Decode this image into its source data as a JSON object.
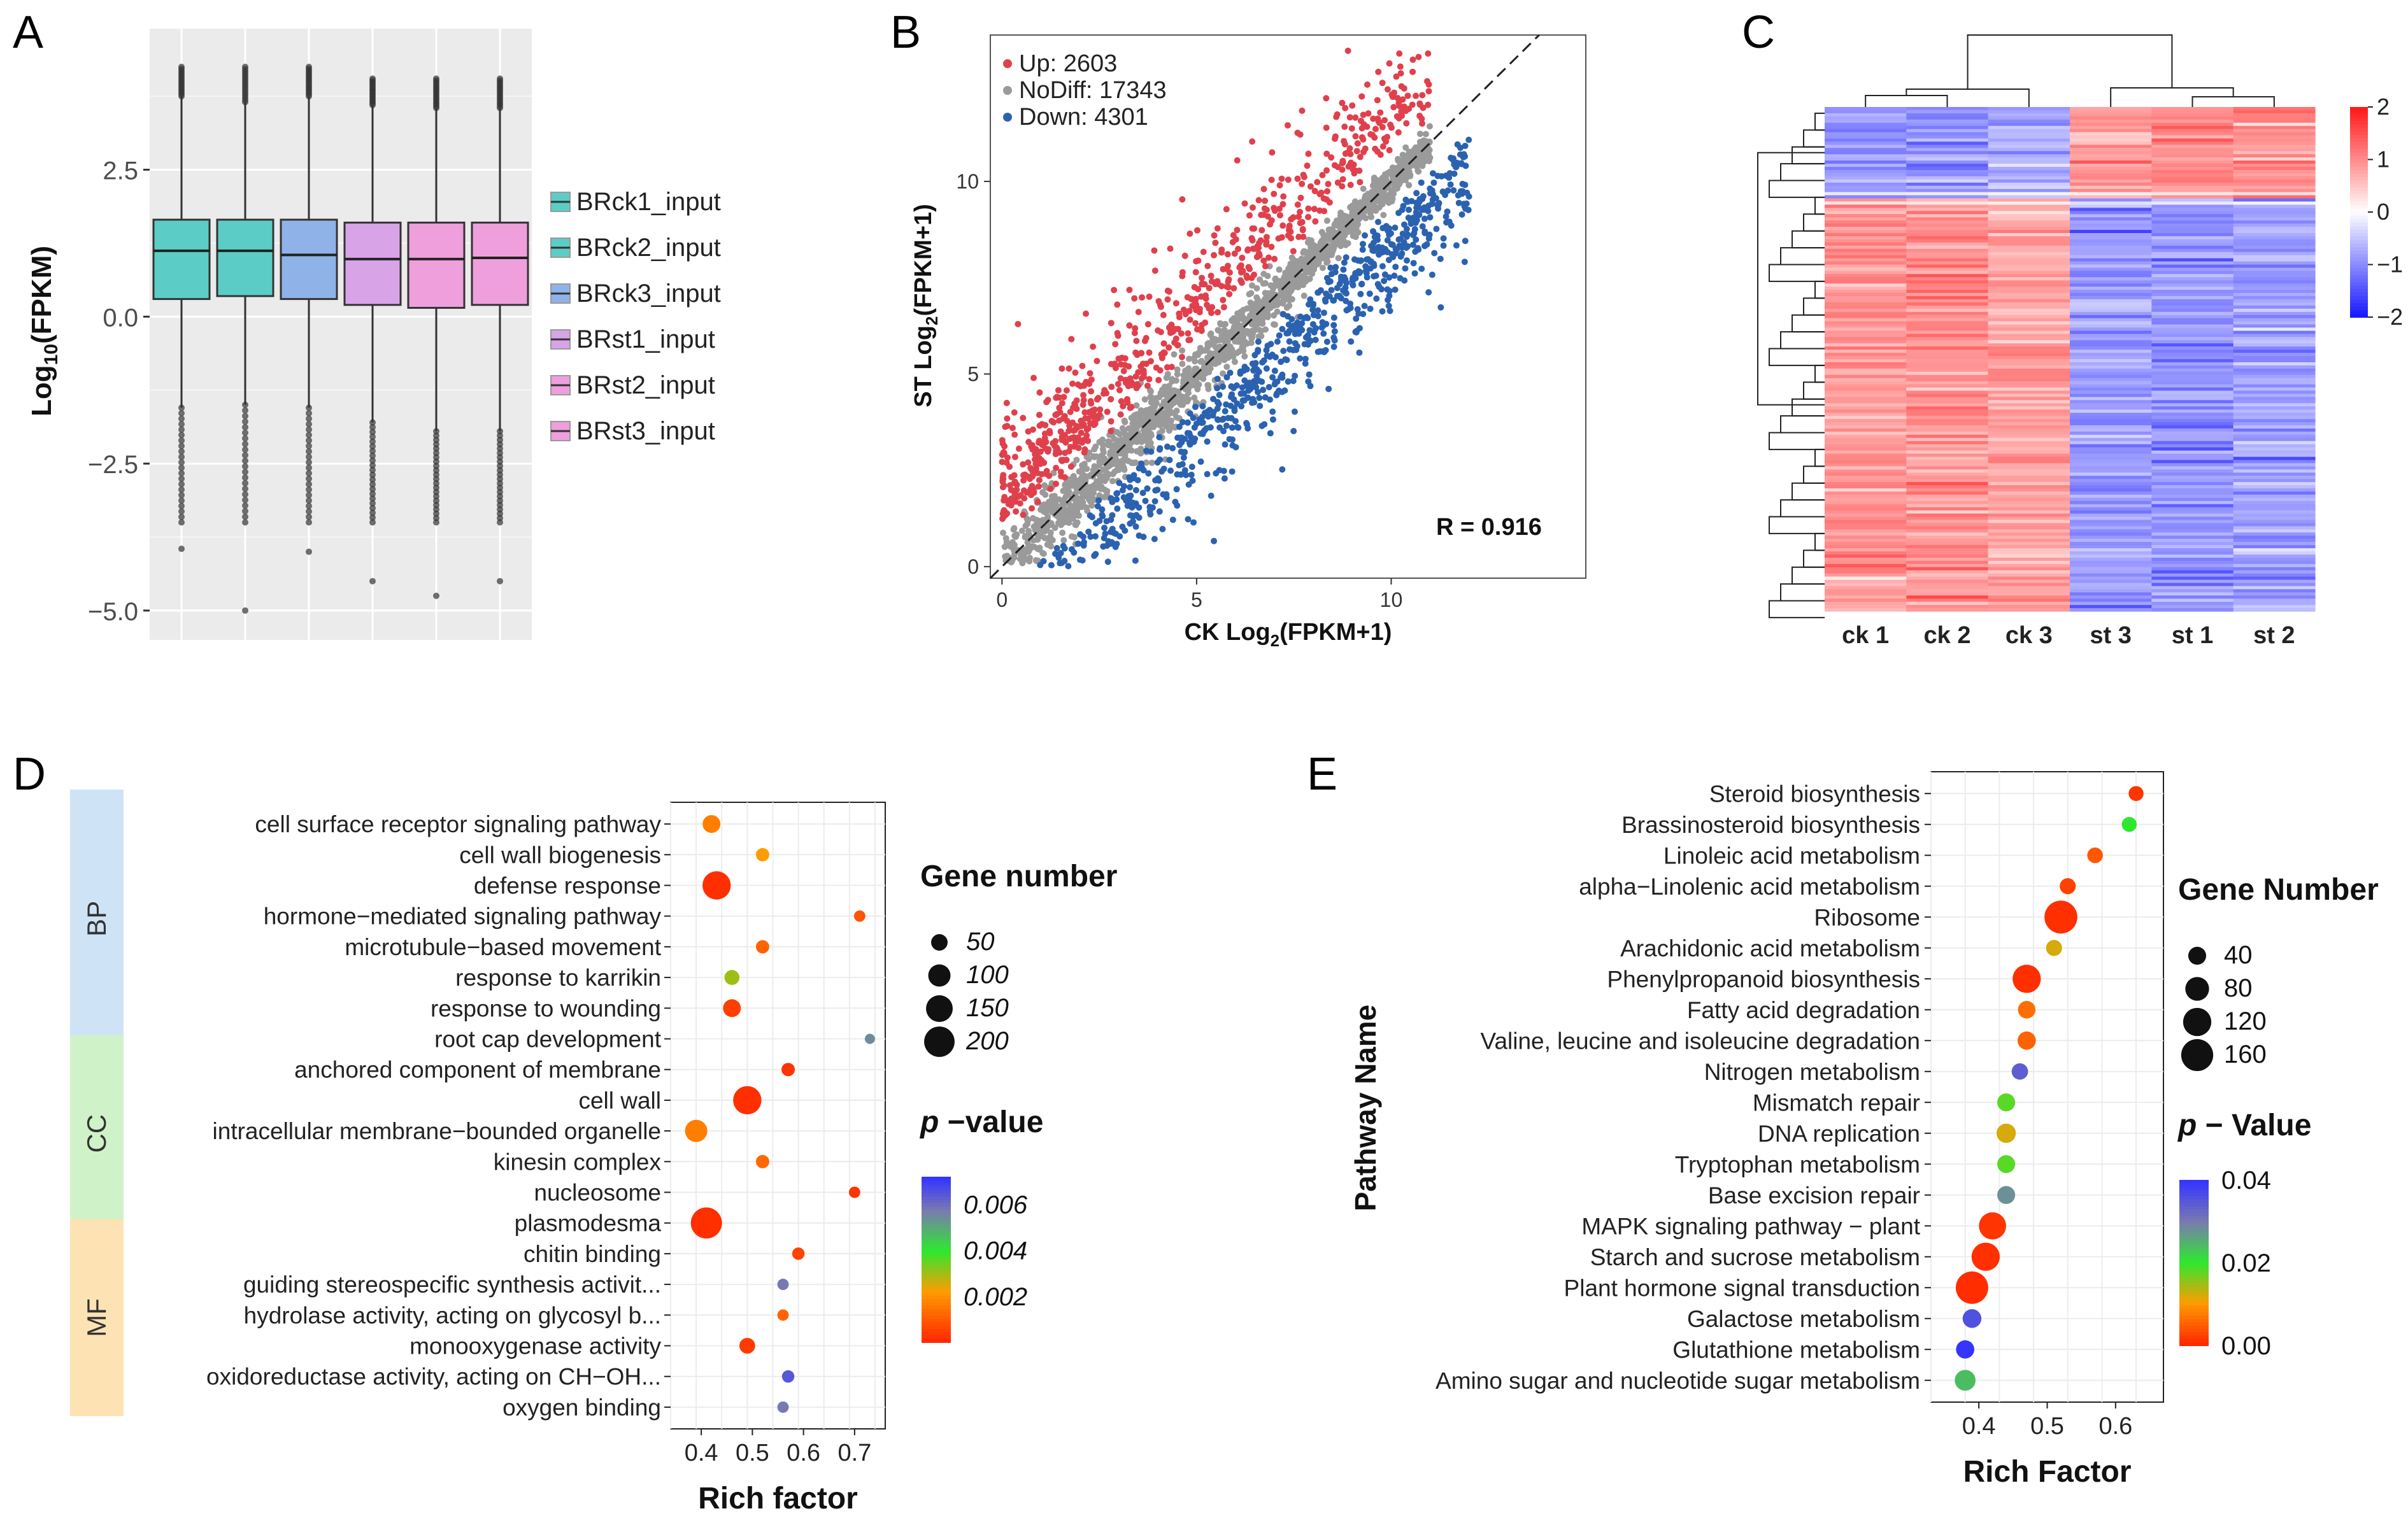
{
  "colors": {
    "red": "#e8383d",
    "gray": "#9a9a9a",
    "blue": "#2060b0",
    "teal": "#5fcdc7",
    "pink": "#e9a0df",
    "hm_high": "#ff0000",
    "hm_low": "#0000ff"
  },
  "panels": {
    "a": "A",
    "b": "B",
    "c": "C",
    "d": "D",
    "e": "E"
  },
  "chart_data": [
    {
      "id": "A",
      "type": "box",
      "ylabel_main": "Log",
      "ylabel_sub": "10",
      "ylabel_tail": "(FPKM)",
      "ylim": [
        -5.5,
        4.9
      ],
      "yticks": [
        2.5,
        0,
        -2.5,
        -5
      ],
      "ytick_labels": [
        "2.5",
        "0.0",
        "−2.5",
        "−5.0"
      ],
      "series": [
        {
          "name": "BRck1_input",
          "q1": 0.3,
          "median": 1.12,
          "q3": 1.65,
          "whisker_low": -1.55,
          "whisker_high": 3.75,
          "max": 4.25,
          "min": -3.95,
          "color": "teal"
        },
        {
          "name": "BRck2_input",
          "q1": 0.35,
          "median": 1.12,
          "q3": 1.65,
          "whisker_low": -1.5,
          "whisker_high": 3.65,
          "max": 4.25,
          "min": -5.0,
          "color": "teal"
        },
        {
          "name": "BRck3_input",
          "q1": 0.3,
          "median": 1.05,
          "q3": 1.65,
          "whisker_low": -1.55,
          "whisker_high": 3.75,
          "max": 4.25,
          "min": -4.0,
          "color": "blue"
        },
        {
          "name": "BRst1_input",
          "q1": 0.2,
          "median": 0.98,
          "q3": 1.6,
          "whisker_low": -1.8,
          "whisker_high": 3.6,
          "max": 4.05,
          "min": -4.5,
          "color": "purple"
        },
        {
          "name": "BRst2_input",
          "q1": 0.15,
          "median": 0.98,
          "q3": 1.6,
          "whisker_low": -1.95,
          "whisker_high": 3.55,
          "max": 4.05,
          "min": -4.75,
          "color": "pink"
        },
        {
          "name": "BRst3_input",
          "q1": 0.2,
          "median": 1.0,
          "q3": 1.6,
          "whisker_low": -1.95,
          "whisker_high": 3.55,
          "max": 4.05,
          "min": -4.5,
          "color": "pink"
        }
      ]
    },
    {
      "id": "B",
      "type": "scatter",
      "legend": [
        "Up: 2603",
        "NoDiff: 17343",
        "Down: 4301"
      ],
      "xlabel_pre": "CK Log",
      "xlabel_sub": "2",
      "xlabel_post": "(FPKM+1)",
      "ylabel_pre": "ST Log",
      "ylabel_sub": "2",
      "ylabel_post": "(FPKM+1)",
      "xlim": [
        -0.3,
        15
      ],
      "ylim": [
        -0.3,
        13.8
      ],
      "xticks": [
        0,
        5,
        10
      ],
      "yticks": [
        0,
        5,
        10
      ],
      "annotation": "R = 0.916"
    },
    {
      "id": "C",
      "type": "heatmap",
      "columns": [
        "ck 1",
        "ck 2",
        "ck 3",
        "st 3",
        "st 1",
        "st 2"
      ],
      "scale_ticks": [
        2,
        1,
        0,
        -1,
        -2
      ],
      "scale_labels": [
        "2",
        "1",
        "0",
        "−1",
        "−2"
      ],
      "upper_cluster_fraction": 0.18,
      "upper_cluster": [
        -0.9,
        -1.0,
        -0.7,
        0.9,
        0.95,
        0.95
      ],
      "lower_cluster": [
        0.9,
        0.95,
        0.8,
        -0.9,
        -0.9,
        -0.85
      ]
    },
    {
      "id": "D",
      "type": "bubble",
      "title_size": "Gene number",
      "size_ticks": [
        50,
        100,
        150,
        200
      ],
      "title_color_italic": "p",
      "title_color_rest": " −value",
      "color_ticks": [
        0.006,
        0.004,
        0.002
      ],
      "color_tick_labels": [
        "0.006",
        "0.004",
        "0.002"
      ],
      "clim": [
        0.0,
        0.0072
      ],
      "xlabel": "Rich factor",
      "xlim": [
        0.34,
        0.76
      ],
      "xticks": [
        0.4,
        0.5,
        0.6,
        0.7
      ],
      "xtick_labels": [
        "0.4",
        "0.5",
        "0.6",
        "0.7"
      ],
      "groups": [
        {
          "name": "BP",
          "rows": 8,
          "color": "#cfe3f7"
        },
        {
          "name": "CC",
          "rows": 6,
          "color": "#d0f2c9"
        },
        {
          "name": "MF",
          "rows": 6,
          "color": "#fde3b3"
        }
      ],
      "terms": [
        {
          "label": "cell surface receptor signaling pathway",
          "rich": 0.42,
          "genes": 60,
          "p": 0.0016
        },
        {
          "label": "cell wall biogenesis",
          "rich": 0.52,
          "genes": 30,
          "p": 0.0022
        },
        {
          "label": "defense response",
          "rich": 0.43,
          "genes": 170,
          "p": 0.0001
        },
        {
          "label": "hormone−mediated signaling pathway",
          "rich": 0.71,
          "genes": 20,
          "p": 0.0008
        },
        {
          "label": "microtubule−based movement",
          "rich": 0.52,
          "genes": 30,
          "p": 0.0011
        },
        {
          "label": "response to karrikin",
          "rich": 0.46,
          "genes": 40,
          "p": 0.003
        },
        {
          "label": "response to wounding",
          "rich": 0.46,
          "genes": 60,
          "p": 0.0004
        },
        {
          "label": "root cap development",
          "rich": 0.73,
          "genes": 15,
          "p": 0.0055
        },
        {
          "label": "anchored component of membrane",
          "rich": 0.57,
          "genes": 30,
          "p": 0.0002
        },
        {
          "label": "cell wall",
          "rich": 0.49,
          "genes": 170,
          "p": 0.0001
        },
        {
          "label": "intracellular membrane−bounded organelle",
          "rich": 0.39,
          "genes": 100,
          "p": 0.0016
        },
        {
          "label": "kinesin complex",
          "rich": 0.52,
          "genes": 30,
          "p": 0.0012
        },
        {
          "label": "nucleosome",
          "rich": 0.7,
          "genes": 20,
          "p": 0.0002
        },
        {
          "label": "plasmodesma",
          "rich": 0.41,
          "genes": 210,
          "p": 0.0001
        },
        {
          "label": "chitin binding",
          "rich": 0.59,
          "genes": 25,
          "p": 0.0005
        },
        {
          "label": "guiding stereospecific synthesis activit...",
          "rich": 0.56,
          "genes": 20,
          "p": 0.0058
        },
        {
          "label": "hydrolase activity, acting on glycosyl b...",
          "rich": 0.56,
          "genes": 20,
          "p": 0.0011
        },
        {
          "label": "monooxygenase activity",
          "rich": 0.49,
          "genes": 45,
          "p": 0.0003
        },
        {
          "label": "oxidoreductase activity, acting on CH−OH...",
          "rich": 0.57,
          "genes": 25,
          "p": 0.0065
        },
        {
          "label": "oxygen binding",
          "rich": 0.56,
          "genes": 20,
          "p": 0.0058
        }
      ]
    },
    {
      "id": "E",
      "type": "bubble",
      "title_size": "Gene Number",
      "size_ticks": [
        40,
        80,
        120,
        160
      ],
      "title_color_italic": "p",
      "title_color_rest": " − Value",
      "color_ticks": [
        0.04,
        0.02,
        0.0
      ],
      "color_tick_labels": [
        "0.04",
        "0.02",
        "0.00"
      ],
      "clim": [
        0.0,
        0.04
      ],
      "ylabel": "Pathway Name",
      "xlabel": "Rich Factor",
      "xlim": [
        0.33,
        0.67
      ],
      "xticks": [
        0.4,
        0.5,
        0.6
      ],
      "xtick_labels": [
        "0.4",
        "0.5",
        "0.6"
      ],
      "terms": [
        {
          "label": "Steroid biosynthesis",
          "rich": 0.63,
          "genes": 25,
          "p": 0.001
        },
        {
          "label": "Brassinosteroid biosynthesis",
          "rich": 0.62,
          "genes": 25,
          "p": 0.02
        },
        {
          "label": "Linoleic acid metabolism",
          "rich": 0.57,
          "genes": 28,
          "p": 0.004
        },
        {
          "label": "alpha−Linolenic acid metabolism",
          "rich": 0.53,
          "genes": 30,
          "p": 0.002
        },
        {
          "label": "Ribosome",
          "rich": 0.52,
          "genes": 170,
          "p": 0.0005
        },
        {
          "label": "Arachidonic acid metabolism",
          "rich": 0.51,
          "genes": 30,
          "p": 0.012
        },
        {
          "label": "Phenylpropanoid biosynthesis",
          "rich": 0.47,
          "genes": 120,
          "p": 0.0004
        },
        {
          "label": "Fatty acid degradation",
          "rich": 0.47,
          "genes": 38,
          "p": 0.006
        },
        {
          "label": "Valine, leucine and isoleucine degradation",
          "rich": 0.47,
          "genes": 42,
          "p": 0.005
        },
        {
          "label": "Nitrogen metabolism",
          "rich": 0.46,
          "genes": 32,
          "p": 0.034
        },
        {
          "label": "Mismatch repair",
          "rich": 0.44,
          "genes": 40,
          "p": 0.018
        },
        {
          "label": "DNA replication",
          "rich": 0.44,
          "genes": 48,
          "p": 0.012
        },
        {
          "label": "Tryptophan metabolism",
          "rich": 0.44,
          "genes": 40,
          "p": 0.018
        },
        {
          "label": "Base excision repair",
          "rich": 0.44,
          "genes": 40,
          "p": 0.028
        },
        {
          "label": "MAPK signaling pathway − plant",
          "rich": 0.42,
          "genes": 110,
          "p": 0.001
        },
        {
          "label": "Starch and sucrose metabolism",
          "rich": 0.41,
          "genes": 120,
          "p": 0.0005
        },
        {
          "label": "Plant hormone signal transduction",
          "rich": 0.39,
          "genes": 165,
          "p": 0.0003
        },
        {
          "label": "Galactose metabolism",
          "rich": 0.39,
          "genes": 45,
          "p": 0.036
        },
        {
          "label": "Glutathione metabolism",
          "rich": 0.38,
          "genes": 42,
          "p": 0.04
        },
        {
          "label": "Amino sugar and nucleotide sugar metabolism",
          "rich": 0.38,
          "genes": 58,
          "p": 0.024
        }
      ]
    }
  ]
}
